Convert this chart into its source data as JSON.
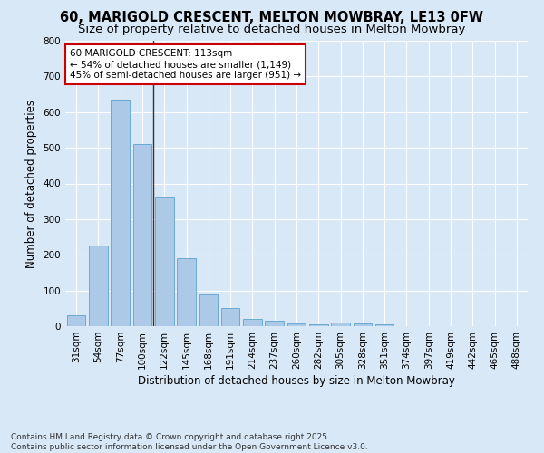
{
  "title_line1": "60, MARIGOLD CRESCENT, MELTON MOWBRAY, LE13 0FW",
  "title_line2": "Size of property relative to detached houses in Melton Mowbray",
  "xlabel": "Distribution of detached houses by size in Melton Mowbray",
  "ylabel": "Number of detached properties",
  "categories": [
    "31sqm",
    "54sqm",
    "77sqm",
    "100sqm",
    "122sqm",
    "145sqm",
    "168sqm",
    "191sqm",
    "214sqm",
    "237sqm",
    "260sqm",
    "282sqm",
    "305sqm",
    "328sqm",
    "351sqm",
    "374sqm",
    "397sqm",
    "419sqm",
    "442sqm",
    "465sqm",
    "488sqm"
  ],
  "values": [
    30,
    225,
    635,
    510,
    362,
    190,
    88,
    50,
    20,
    15,
    8,
    5,
    10,
    8,
    5,
    0,
    0,
    0,
    0,
    0,
    0
  ],
  "bar_color": "#adc9e8",
  "bar_edge_color": "#6aaad4",
  "vline_pos": 3.5,
  "vline_color": "#333333",
  "annotation_text": "60 MARIGOLD CRESCENT: 113sqm\n← 54% of detached houses are smaller (1,149)\n45% of semi-detached houses are larger (951) →",
  "annotation_box_color": "#ffffff",
  "annotation_box_edge": "#cc0000",
  "ylim": [
    0,
    800
  ],
  "yticks": [
    0,
    100,
    200,
    300,
    400,
    500,
    600,
    700,
    800
  ],
  "background_color": "#d9e8f7",
  "plot_bg_color": "#d9e8f7",
  "grid_color": "#ffffff",
  "footnote": "Contains HM Land Registry data © Crown copyright and database right 2025.\nContains public sector information licensed under the Open Government Licence v3.0.",
  "title_fontsize": 10.5,
  "subtitle_fontsize": 9.5,
  "annotation_fontsize": 7.5,
  "axis_label_fontsize": 8.5,
  "tick_fontsize": 7.5,
  "footnote_fontsize": 6.5
}
